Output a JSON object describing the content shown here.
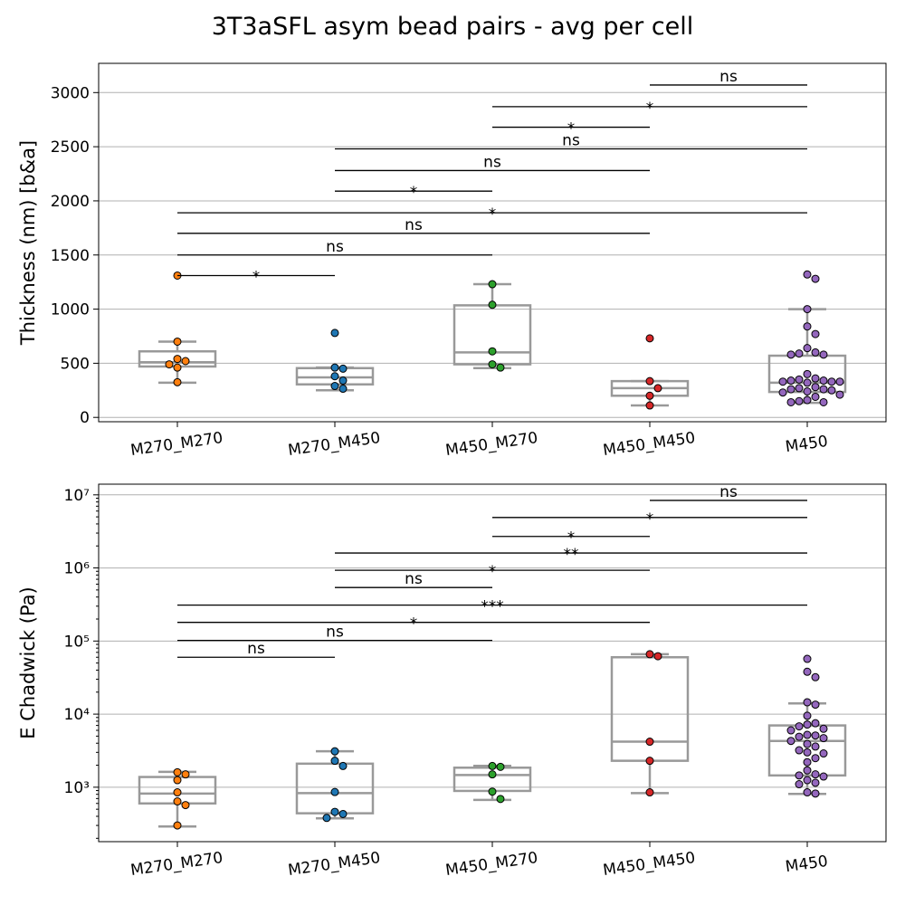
{
  "figure": {
    "title": "3T3aSFL asym bead pairs - avg per cell"
  },
  "colors": {
    "M270_M270": "#ff7f0e",
    "M270_M450": "#1f77b4",
    "M450_M270": "#2ca02c",
    "M450_M450": "#d62728",
    "M450": "#9467bd",
    "box": "#999999",
    "grid": "#b0b0b0"
  },
  "chart_data": [
    {
      "type": "box",
      "ylabel": "Thickness (nm) [b&a]",
      "yscale": "linear",
      "ylim": [
        -40,
        3270
      ],
      "yticks": [
        0,
        500,
        1000,
        1500,
        2000,
        2500,
        3000
      ],
      "ytick_labels": [
        "0",
        "500",
        "1000",
        "1500",
        "2000",
        "2500",
        "3000"
      ],
      "grid": "horizontal",
      "categories": [
        "M270_M270",
        "M270_M450",
        "M450_M270",
        "M450_M450",
        "M450"
      ],
      "boxes": [
        {
          "category": "M270_M270",
          "whisker_low": 320,
          "q1": 470,
          "median": 510,
          "q3": 610,
          "whisker_high": 700
        },
        {
          "category": "M270_M450",
          "whisker_low": 250,
          "q1": 305,
          "median": 370,
          "q3": 455,
          "whisker_high": 460
        },
        {
          "category": "M450_M270",
          "whisker_low": 455,
          "q1": 490,
          "median": 600,
          "q3": 1035,
          "whisker_high": 1230
        },
        {
          "category": "M450_M450",
          "whisker_low": 110,
          "q1": 200,
          "median": 270,
          "q3": 335,
          "whisker_high": 335
        },
        {
          "category": "M450",
          "whisker_low": 135,
          "q1": 235,
          "median": 320,
          "q3": 570,
          "whisker_high": 1000
        }
      ],
      "points": {
        "M270_M270": [
          1310,
          700,
          540,
          520,
          490,
          460,
          325
        ],
        "M270_M450": [
          780,
          460,
          450,
          380,
          340,
          290,
          265
        ],
        "M450_M270": [
          1230,
          1040,
          610,
          490,
          460
        ],
        "M450_M450": [
          730,
          335,
          270,
          200,
          110
        ],
        "M450": [
          1320,
          1280,
          1000,
          840,
          770,
          640,
          600,
          590,
          580,
          580,
          400,
          360,
          350,
          340,
          340,
          330,
          330,
          330,
          320,
          280,
          270,
          260,
          260,
          250,
          240,
          230,
          210,
          190,
          160,
          150,
          140,
          140
        ]
      },
      "significance": [
        {
          "from": "M270_M270",
          "to": "M270_M450",
          "level": 1310,
          "label": "*"
        },
        {
          "from": "M270_M270",
          "to": "M450_M270",
          "level": 1500,
          "label": "ns"
        },
        {
          "from": "M270_M270",
          "to": "M450_M450",
          "level": 1700,
          "label": "ns"
        },
        {
          "from": "M270_M270",
          "to": "M450",
          "level": 1890,
          "label": "*"
        },
        {
          "from": "M270_M450",
          "to": "M450_M270",
          "level": 2090,
          "label": "*"
        },
        {
          "from": "M270_M450",
          "to": "M450_M450",
          "level": 2280,
          "label": "ns"
        },
        {
          "from": "M270_M450",
          "to": "M450",
          "level": 2480,
          "label": "ns"
        },
        {
          "from": "M450_M270",
          "to": "M450_M450",
          "level": 2680,
          "label": "*"
        },
        {
          "from": "M450_M270",
          "to": "M450",
          "level": 2870,
          "label": "*"
        },
        {
          "from": "M450_M450",
          "to": "M450",
          "level": 3070,
          "label": "ns"
        }
      ]
    },
    {
      "type": "box",
      "ylabel": "E Chadwick (Pa)",
      "yscale": "log",
      "ylim": [
        180,
        14000000
      ],
      "yticks": [
        1000,
        10000,
        100000,
        1000000,
        10000000
      ],
      "ytick_labels": [
        "10³",
        "10⁴",
        "10⁵",
        "10⁶",
        "10⁷"
      ],
      "grid": "horizontal",
      "categories": [
        "M270_M270",
        "M270_M450",
        "M450_M270",
        "M450_M450",
        "M450"
      ],
      "boxes": [
        {
          "category": "M270_M270",
          "whisker_low": 290,
          "q1": 600,
          "median": 820,
          "q3": 1380,
          "whisker_high": 1620
        },
        {
          "category": "M270_M450",
          "whisker_low": 375,
          "q1": 440,
          "median": 830,
          "q3": 2100,
          "whisker_high": 3100
        },
        {
          "category": "M450_M270",
          "whisker_low": 670,
          "q1": 890,
          "median": 1470,
          "q3": 1850,
          "whisker_high": 1960
        },
        {
          "category": "M450_M450",
          "whisker_low": 830,
          "q1": 2300,
          "median": 4200,
          "q3": 60000,
          "whisker_high": 66000
        },
        {
          "category": "M450",
          "whisker_low": 810,
          "q1": 1450,
          "median": 4300,
          "q3": 7000,
          "whisker_high": 14000
        }
      ],
      "points": {
        "M270_M270": [
          1600,
          1500,
          1250,
          850,
          640,
          570,
          300
        ],
        "M270_M450": [
          3100,
          2300,
          1950,
          860,
          460,
          430,
          380
        ],
        "M450_M270": [
          1950,
          1900,
          1500,
          870,
          690
        ],
        "M450_M450": [
          66000,
          62000,
          4200,
          2300,
          850
        ],
        "M450": [
          57000,
          38000,
          32000,
          14500,
          13500,
          9500,
          7500,
          7200,
          6800,
          6300,
          6000,
          5200,
          5100,
          4900,
          4700,
          4300,
          3900,
          3600,
          3200,
          3000,
          2900,
          2500,
          2200,
          1700,
          1500,
          1450,
          1400,
          1250,
          1150,
          1100,
          850,
          820
        ]
      },
      "significance": [
        {
          "from": "M270_M270",
          "to": "M270_M450",
          "level": 60000,
          "label": "ns"
        },
        {
          "from": "M270_M270",
          "to": "M450_M270",
          "level": 102000,
          "label": "ns"
        },
        {
          "from": "M270_M270",
          "to": "M450_M450",
          "level": 180000,
          "label": "*"
        },
        {
          "from": "M270_M270",
          "to": "M450",
          "level": 310000,
          "label": "***"
        },
        {
          "from": "M270_M450",
          "to": "M450_M270",
          "level": 540000,
          "label": "ns"
        },
        {
          "from": "M270_M450",
          "to": "M450_M450",
          "level": 930000,
          "label": "*"
        },
        {
          "from": "M270_M450",
          "to": "M450",
          "level": 1600000,
          "label": "**"
        },
        {
          "from": "M450_M270",
          "to": "M450_M450",
          "level": 2700000,
          "label": "*"
        },
        {
          "from": "M450_M270",
          "to": "M450",
          "level": 4900000,
          "label": "*"
        },
        {
          "from": "M450_M450",
          "to": "M450",
          "level": 8400000,
          "label": "ns"
        }
      ]
    }
  ]
}
